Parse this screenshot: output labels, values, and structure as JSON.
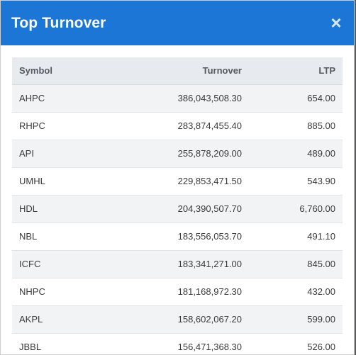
{
  "modal": {
    "title": "Top Turnover",
    "close_label": "×"
  },
  "table": {
    "headers": {
      "symbol": "Symbol",
      "turnover": "Turnover",
      "ltp": "LTP"
    },
    "rows": [
      {
        "symbol": "AHPC",
        "turnover": "386,043,508.30",
        "ltp": "654.00"
      },
      {
        "symbol": "RHPC",
        "turnover": "283,874,455.40",
        "ltp": "885.00"
      },
      {
        "symbol": "API",
        "turnover": "255,878,209.00",
        "ltp": "489.00"
      },
      {
        "symbol": "UMHL",
        "turnover": "229,853,471.50",
        "ltp": "543.90"
      },
      {
        "symbol": "HDL",
        "turnover": "204,390,507.70",
        "ltp": "6,760.00"
      },
      {
        "symbol": "NBL",
        "turnover": "183,556,053.70",
        "ltp": "491.10"
      },
      {
        "symbol": "ICFC",
        "turnover": "183,341,271.00",
        "ltp": "845.00"
      },
      {
        "symbol": "NHPC",
        "turnover": "181,168,972.30",
        "ltp": "432.00"
      },
      {
        "symbol": "AKPL",
        "turnover": "158,602,067.20",
        "ltp": "599.00"
      },
      {
        "symbol": "JBBL",
        "turnover": "156,471,368.30",
        "ltp": "526.00"
      }
    ]
  },
  "colors": {
    "header_bg": "#1b76d6",
    "table_head_bg": "#e7eaee",
    "row_alt_bg": "#f2f3f5"
  }
}
